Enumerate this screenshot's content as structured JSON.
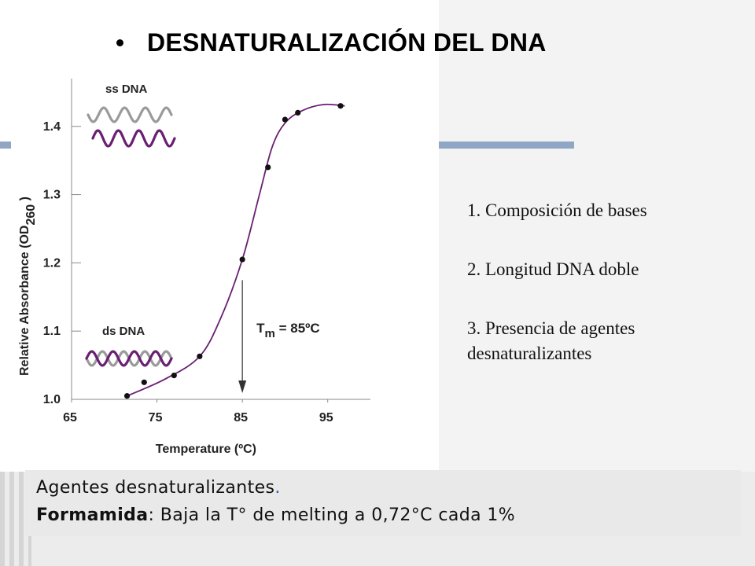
{
  "slide": {
    "title": "DESNATURALIZACIÓN DEL DNA",
    "factors": [
      "1. Composición de bases",
      "2. Longitud DNA doble",
      "3. Presencia de agentes",
      "desnaturalizantes"
    ],
    "footer_line1": "Agentes desnaturalizantes",
    "footer_line1_punct": ".",
    "footer_line2_bold": "Formamida",
    "footer_line2_rest": ": Baja la T° de melting a 0,72°C cada 1%",
    "accent_blue": "#8fa6c4",
    "curve_color": "#6a1f73"
  },
  "chart_data": {
    "type": "scatter",
    "xlabel": "Temperature (ºC)",
    "ylabel_main": "Relative Absorbance (OD",
    "ylabel_sub": "260",
    "ylabel_close": " )",
    "x_ticks": [
      "65",
      "75",
      "85",
      "95"
    ],
    "y_ticks": [
      "1.0",
      "1.1",
      "1.2",
      "1.3",
      "1.4"
    ],
    "xlim": [
      65,
      100
    ],
    "ylim": [
      1.0,
      1.47
    ],
    "points": [
      {
        "x": 71.5,
        "y": 1.005
      },
      {
        "x": 73.5,
        "y": 1.025
      },
      {
        "x": 77.0,
        "y": 1.035
      },
      {
        "x": 80.0,
        "y": 1.063
      },
      {
        "x": 85.0,
        "y": 1.205
      },
      {
        "x": 88.0,
        "y": 1.34
      },
      {
        "x": 90.0,
        "y": 1.41
      },
      {
        "x": 91.5,
        "y": 1.42
      },
      {
        "x": 96.5,
        "y": 1.43
      }
    ],
    "curve": [
      {
        "x": 71.5,
        "y": 1.005
      },
      {
        "x": 76.0,
        "y": 1.03
      },
      {
        "x": 80.0,
        "y": 1.063
      },
      {
        "x": 82.5,
        "y": 1.12
      },
      {
        "x": 85.0,
        "y": 1.205
      },
      {
        "x": 87.0,
        "y": 1.3
      },
      {
        "x": 88.5,
        "y": 1.37
      },
      {
        "x": 90.0,
        "y": 1.405
      },
      {
        "x": 92.0,
        "y": 1.423
      },
      {
        "x": 94.5,
        "y": 1.432
      },
      {
        "x": 97.0,
        "y": 1.43
      }
    ],
    "tm_label": "T",
    "tm_sub": "m",
    "tm_value": "= 85ºC",
    "tm_x": 85,
    "ss_label": "ss DNA",
    "ds_label": "ds DNA"
  }
}
